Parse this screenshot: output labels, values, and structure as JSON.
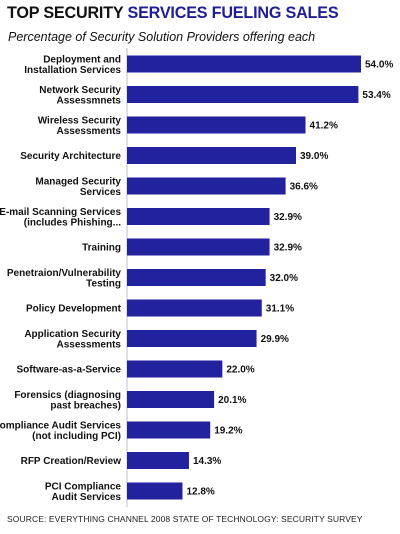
{
  "header": {
    "title_part1": "TOP SECURITY",
    "title_part2": "SERVICES FUELING SALES",
    "subtitle": "Percentage of Security Solution Providers offering each"
  },
  "footer": {
    "source": "SOURCE: EVERYTHING CHANNEL 2008 STATE OF TECHNOLOGY: SECURITY SURVEY"
  },
  "colors": {
    "bar": "#22229e",
    "title_accent": "#1e1e96"
  },
  "chart_data": {
    "type": "bar",
    "orientation": "horizontal",
    "title": "TOP SECURITY SERVICES FUELING SALES",
    "subtitle": "Percentage of Security Solution Providers offering each",
    "unit": "%",
    "xlim": [
      0,
      54
    ],
    "grid": false,
    "categories": [
      [
        "Deployment and",
        "Installation Services"
      ],
      [
        "Network Security",
        "Assessmnets"
      ],
      [
        "Wireless Security",
        "Assessments"
      ],
      [
        "Security Architecture"
      ],
      [
        "Managed Security",
        "Services"
      ],
      [
        "E-mail Scanning Services",
        "(includes Phishing..."
      ],
      [
        "Training"
      ],
      [
        "Penetraion/Vulnerability",
        "Testing"
      ],
      [
        "Policy Development"
      ],
      [
        "Application Security",
        "Assessments"
      ],
      [
        "Software-as-a-Service"
      ],
      [
        "Forensics (diagnosing",
        "past breaches)"
      ],
      [
        "Compliance Audit Services",
        "(not including PCI)"
      ],
      [
        "RFP Creation/Review"
      ],
      [
        "PCI Compliance",
        "Audit Services"
      ]
    ],
    "values": [
      54.0,
      53.4,
      41.2,
      39.0,
      36.6,
      32.9,
      32.9,
      32.0,
      31.1,
      29.9,
      22.0,
      20.1,
      19.2,
      14.3,
      12.8
    ],
    "value_labels": [
      "54.0%",
      "53.4%",
      "41.2%",
      "39.0%",
      "36.6%",
      "32.9%",
      "32.9%",
      "32.0%",
      "31.1%",
      "29.9%",
      "22.0%",
      "20.1%",
      "19.2%",
      "14.3%",
      "12.8%"
    ]
  }
}
